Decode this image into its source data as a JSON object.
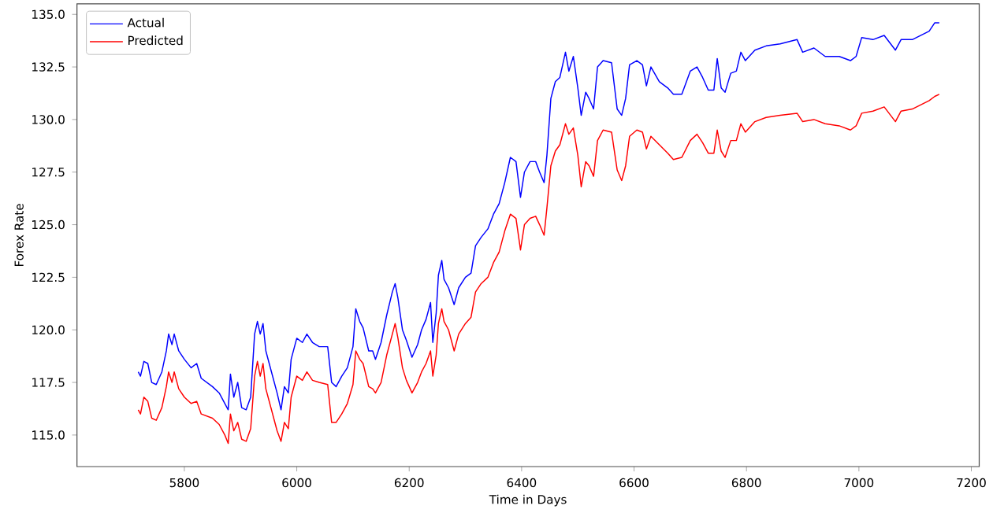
{
  "chart_data": {
    "type": "line",
    "xlabel": "Time in Days",
    "ylabel": "Forex Rate",
    "legend": "top left",
    "x": [
      5718,
      5722,
      5728,
      5735,
      5742,
      5750,
      5760,
      5768,
      5772,
      5778,
      5782,
      5790,
      5800,
      5812,
      5822,
      5830,
      5840,
      5850,
      5862,
      5872,
      5878,
      5882,
      5888,
      5895,
      5902,
      5910,
      5918,
      5925,
      5930,
      5935,
      5940,
      5945,
      5955,
      5965,
      5972,
      5978,
      5985,
      5990,
      6000,
      6010,
      6018,
      6028,
      6040,
      6055,
      6062,
      6070,
      6080,
      6090,
      6100,
      6105,
      6112,
      6118,
      6128,
      6135,
      6140,
      6150,
      6160,
      6170,
      6175,
      6180,
      6188,
      6195,
      6205,
      6215,
      6222,
      6230,
      6238,
      6242,
      6248,
      6252,
      6258,
      6262,
      6270,
      6280,
      6288,
      6300,
      6310,
      6318,
      6328,
      6340,
      6350,
      6360,
      6370,
      6380,
      6390,
      6398,
      6405,
      6415,
      6425,
      6432,
      6440,
      6445,
      6452,
      6460,
      6468,
      6478,
      6484,
      6492,
      6500,
      6506,
      6514,
      6520,
      6528,
      6535,
      6545,
      6560,
      6570,
      6578,
      6585,
      6592,
      6605,
      6615,
      6622,
      6630,
      6645,
      6660,
      6670,
      6685,
      6700,
      6712,
      6722,
      6732,
      6742,
      6748,
      6755,
      6762,
      6772,
      6782,
      6790,
      6798,
      6815,
      6835,
      6860,
      6890,
      6900,
      6920,
      6940,
      6965,
      6985,
      6995,
      7005,
      7025,
      7045,
      7065,
      7075,
      7095,
      7110,
      7125,
      7135,
      7143
    ],
    "series": [
      {
        "name": "Actual",
        "color": "#0000ff",
        "values": [
          118.0,
          117.8,
          118.5,
          118.4,
          117.5,
          117.4,
          118.0,
          119.0,
          119.8,
          119.3,
          119.8,
          119.0,
          118.6,
          118.2,
          118.4,
          117.7,
          117.5,
          117.3,
          117.0,
          116.5,
          116.2,
          117.9,
          116.8,
          117.5,
          116.3,
          116.2,
          116.8,
          119.8,
          120.4,
          119.8,
          120.3,
          119.0,
          118.0,
          117.0,
          116.2,
          117.3,
          117.0,
          118.6,
          119.6,
          119.4,
          119.8,
          119.4,
          119.2,
          119.2,
          117.5,
          117.3,
          117.8,
          118.2,
          119.2,
          121.0,
          120.4,
          120.1,
          119.0,
          119.0,
          118.6,
          119.4,
          120.7,
          121.8,
          122.2,
          121.5,
          120.0,
          119.5,
          118.7,
          119.3,
          120.0,
          120.5,
          121.3,
          119.4,
          120.8,
          122.6,
          123.3,
          122.4,
          122.0,
          121.2,
          122.0,
          122.5,
          122.7,
          124.0,
          124.4,
          124.8,
          125.5,
          126.0,
          127.0,
          128.2,
          128.0,
          126.3,
          127.5,
          128.0,
          128.0,
          127.5,
          127.0,
          128.3,
          131.0,
          131.8,
          132.0,
          133.2,
          132.3,
          133.0,
          131.5,
          130.2,
          131.3,
          131.0,
          130.5,
          132.5,
          132.8,
          132.7,
          130.5,
          130.2,
          131.0,
          132.6,
          132.8,
          132.6,
          131.6,
          132.5,
          131.8,
          131.5,
          131.2,
          131.2,
          132.3,
          132.5,
          132.0,
          131.4,
          131.4,
          132.9,
          131.5,
          131.3,
          132.2,
          132.3,
          133.2,
          132.8,
          133.3,
          133.5,
          133.6,
          133.8,
          133.2,
          133.4,
          133.0,
          133.0,
          132.8,
          133.0,
          133.9,
          133.8,
          134.0,
          133.3,
          133.8,
          133.8,
          134.0,
          134.2,
          134.6,
          134.6
        ]
      },
      {
        "name": "Predicted",
        "color": "#ff0000",
        "values": [
          116.2,
          116.0,
          116.8,
          116.6,
          115.8,
          115.7,
          116.3,
          117.3,
          118.0,
          117.5,
          118.0,
          117.2,
          116.8,
          116.5,
          116.6,
          116.0,
          115.9,
          115.8,
          115.5,
          115.0,
          114.6,
          116.0,
          115.2,
          115.6,
          114.8,
          114.7,
          115.3,
          117.8,
          118.5,
          117.8,
          118.4,
          117.2,
          116.2,
          115.2,
          114.7,
          115.6,
          115.3,
          116.8,
          117.8,
          117.6,
          118.0,
          117.6,
          117.5,
          117.4,
          115.6,
          115.6,
          116.0,
          116.5,
          117.4,
          119.0,
          118.6,
          118.4,
          117.3,
          117.2,
          117.0,
          117.5,
          118.8,
          119.8,
          120.3,
          119.6,
          118.2,
          117.6,
          117.0,
          117.5,
          118.0,
          118.4,
          119.0,
          117.8,
          118.8,
          120.3,
          121.0,
          120.4,
          120.0,
          119.0,
          119.8,
          120.3,
          120.6,
          121.8,
          122.2,
          122.5,
          123.2,
          123.7,
          124.7,
          125.5,
          125.3,
          123.8,
          125.0,
          125.3,
          125.4,
          125.0,
          124.5,
          125.8,
          127.8,
          128.5,
          128.8,
          129.8,
          129.3,
          129.6,
          128.3,
          126.8,
          128.0,
          127.8,
          127.3,
          129.0,
          129.5,
          129.4,
          127.6,
          127.1,
          127.8,
          129.2,
          129.5,
          129.4,
          128.6,
          129.2,
          128.8,
          128.4,
          128.1,
          128.2,
          129.0,
          129.3,
          128.9,
          128.4,
          128.4,
          129.5,
          128.5,
          128.2,
          129.0,
          129.0,
          129.8,
          129.4,
          129.9,
          130.1,
          130.2,
          130.3,
          129.9,
          130.0,
          129.8,
          129.7,
          129.5,
          129.7,
          130.3,
          130.4,
          130.6,
          129.9,
          130.4,
          130.5,
          130.7,
          130.9,
          131.1,
          131.2
        ]
      }
    ],
    "xlim": [
      5609,
      7214
    ],
    "ylim": [
      113.5,
      135.5
    ],
    "xticks": [
      5800,
      6000,
      6200,
      6400,
      6600,
      6800,
      7000,
      7200
    ],
    "yticks": [
      {
        "value": 115,
        "label": "115.0"
      },
      {
        "value": 117.5,
        "label": "117.5"
      },
      {
        "value": 120,
        "label": "120.0"
      },
      {
        "value": 122.5,
        "label": "122.5"
      },
      {
        "value": 125,
        "label": "125.0"
      },
      {
        "value": 127.5,
        "label": "127.5"
      },
      {
        "value": 130,
        "label": "130.0"
      },
      {
        "value": 132.5,
        "label": "132.5"
      },
      {
        "value": 135,
        "label": "135.0"
      }
    ]
  }
}
